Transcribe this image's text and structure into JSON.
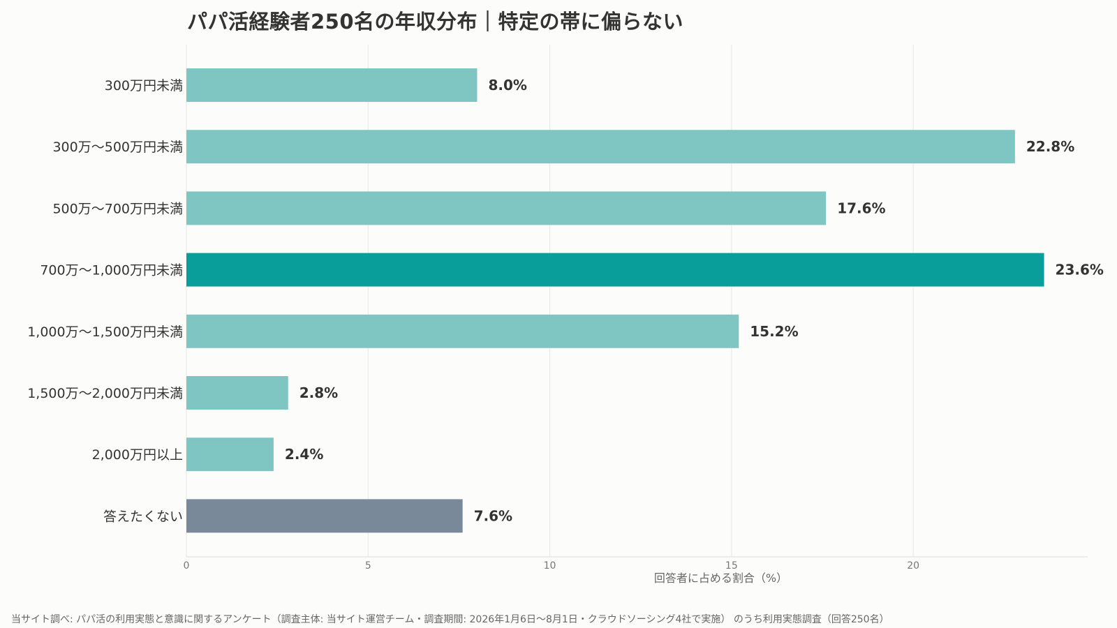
{
  "chart_data": {
    "type": "bar",
    "orientation": "horizontal",
    "title": "パパ活経験者250名の年収分布｜特定の帯に偏らない",
    "xlabel": "回答者に占める割合（%）",
    "ylabel": "",
    "categories": [
      "300万円未満",
      "300万〜500万円未満",
      "500万〜700万円未満",
      "700万〜1,000万円未満",
      "1,000万〜1,500万円未満",
      "1,500万〜2,000万円未満",
      "2,000万円以上",
      "答えたくない"
    ],
    "values": [
      8.0,
      22.8,
      17.6,
      23.6,
      15.2,
      2.8,
      2.4,
      7.6
    ],
    "data_labels": [
      "8.0%",
      "22.8%",
      "17.6%",
      "23.6%",
      "15.2%",
      "2.8%",
      "2.4%",
      "7.6%"
    ],
    "bar_colors": [
      "#7fc6c2",
      "#7fc6c2",
      "#7fc6c2",
      "#0a9e9b",
      "#7fc6c2",
      "#7fc6c2",
      "#7fc6c2",
      "#7a8999"
    ],
    "xticks": [
      0,
      5,
      10,
      15,
      20
    ],
    "xtick_labels": [
      "0",
      "5",
      "10",
      "15",
      "20"
    ],
    "xlim": [
      0,
      24.8
    ],
    "grid": "vertical",
    "legend": "none"
  },
  "footer": {
    "source": "当サイト調べ: パパ活の利用実態と意識に関するアンケート（調査主体: 当サイト運営チーム・調査期間: 2026年1月6日〜8月1日・クラウドソーシング4社で実施） のうち利用実態調査（回答250名）"
  }
}
